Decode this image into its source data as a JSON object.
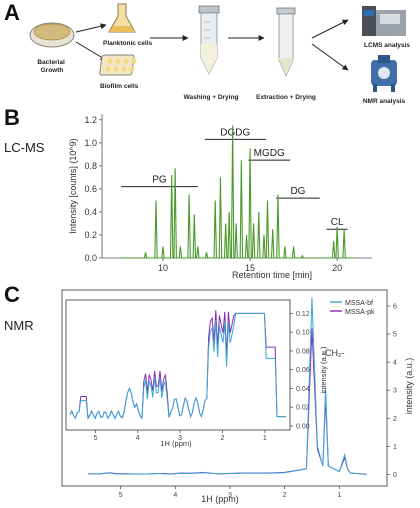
{
  "panel_a": {
    "letter": "A",
    "steps": {
      "growth": "Bacterial\nGrowth",
      "planktonic": "Planktonic cells",
      "biofilm": "Biofilm cells",
      "washing": "Washing + Drying",
      "extraction": "Extraction + Drying",
      "lcms": "LCMS analysis",
      "nmr": "NMR analysis"
    }
  },
  "panel_b": {
    "letter": "B",
    "side_label": "LC-MS",
    "ylabel": "Intensity [counts] (10^9)",
    "xlabel": "Retention time [min]",
    "yticks": [
      "0.0",
      "0.2",
      "0.4",
      "0.6",
      "0.8",
      "1.0",
      "1.2"
    ],
    "xticks": [
      "10",
      "15",
      "20"
    ],
    "colors": {
      "trace": "#4a9a2a"
    },
    "chart_data": {
      "type": "line",
      "x": [
        7.6,
        9.0,
        9.6,
        10.0,
        10.5,
        10.7,
        11.0,
        11.5,
        11.8,
        12.0,
        12.5,
        13.0,
        13.3,
        13.6,
        13.8,
        14.0,
        14.2,
        14.5,
        14.8,
        15.0,
        15.2,
        15.5,
        15.8,
        16.0,
        16.3,
        16.6,
        17.0,
        17.5,
        18.0,
        19.0,
        19.8,
        20.0,
        20.4,
        21.0
      ],
      "y": [
        0.0,
        0.05,
        0.5,
        0.1,
        0.72,
        0.78,
        0.1,
        0.55,
        0.38,
        0.1,
        0.05,
        0.5,
        0.7,
        0.3,
        0.4,
        1.15,
        0.3,
        0.85,
        0.2,
        0.95,
        0.3,
        0.4,
        0.2,
        0.5,
        0.25,
        0.55,
        0.1,
        0.1,
        0.02,
        0.0,
        0.15,
        0.27,
        0.25,
        0.0
      ],
      "groups": [
        {
          "label": "PG",
          "x0": 7.6,
          "x1": 12.0,
          "y": 0.62
        },
        {
          "label": "DGDG",
          "x0": 12.4,
          "x1": 15.9,
          "y": 1.03
        },
        {
          "label": "MGDG",
          "x0": 14.9,
          "x1": 17.3,
          "y": 0.85
        },
        {
          "label": "DG",
          "x0": 16.5,
          "x1": 19.0,
          "y": 0.52
        },
        {
          "label": "CL",
          "x0": 19.4,
          "x1": 20.6,
          "y": 0.25
        }
      ],
      "xlim": [
        6.5,
        22
      ],
      "ylim": [
        0,
        1.25
      ]
    }
  },
  "panel_c": {
    "letter": "C",
    "side_label": "NMR",
    "xlabel": "1H (ppm)",
    "ylabel": "intensity (a.u.)",
    "annot": "-CH₂-",
    "xticks": [
      "5",
      "4",
      "3",
      "2",
      "1"
    ],
    "yticks": [
      "0",
      "1",
      "2",
      "3",
      "4",
      "5",
      "6"
    ],
    "legend": [
      {
        "label": "MSSA-bf",
        "color": "#3aa7d6"
      },
      {
        "label": "MSSA-pk",
        "color": "#8a2ab3"
      }
    ],
    "inset": {
      "xlabel": "1H (ppm)",
      "ylabel": "intensity (a.u.)",
      "xticks": [
        "5",
        "4",
        "3",
        "2",
        "1"
      ],
      "yticks": [
        "0.00",
        "0.02",
        "0.04",
        "0.06",
        "0.08",
        "0.10",
        "0.12"
      ]
    },
    "chart_data": {
      "type": "line",
      "x": [
        5.6,
        5.4,
        5.3,
        5.2,
        5.1,
        4.6,
        4.3,
        4.2,
        4.1,
        3.9,
        3.7,
        3.5,
        3.2,
        2.8,
        2.3,
        2.0,
        1.6,
        1.5,
        1.4,
        1.3,
        1.25,
        1.2,
        1.0,
        0.9,
        0.85,
        0.8,
        0.5
      ],
      "series": [
        {
          "name": "MSSA-bf",
          "values": [
            0.02,
            0.02,
            0.03,
            0.05,
            0.02,
            0.01,
            0.03,
            0.02,
            0.01,
            0.04,
            0.03,
            0.06,
            0.02,
            0.04,
            0.04,
            0.06,
            0.2,
            6.3,
            1.0,
            0.3,
            3.1,
            0.3,
            0.1,
            0.7,
            0.2,
            0.05,
            0.0
          ]
        },
        {
          "name": "MSSA-pk",
          "values": [
            0.02,
            0.02,
            0.04,
            0.06,
            0.03,
            0.01,
            0.03,
            0.03,
            0.02,
            0.05,
            0.04,
            0.07,
            0.02,
            0.05,
            0.05,
            0.07,
            0.2,
            5.2,
            0.9,
            0.3,
            2.7,
            0.3,
            0.1,
            0.6,
            0.2,
            0.05,
            0.0
          ]
        }
      ],
      "xlim": [
        6,
        0.2
      ],
      "ylim": [
        -0.2,
        6.5
      ]
    }
  }
}
